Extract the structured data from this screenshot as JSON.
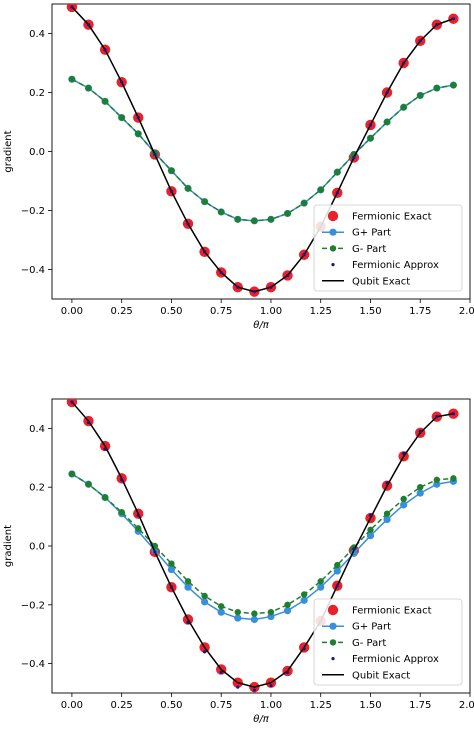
{
  "chart_data": [
    {
      "type": "line",
      "xlabel": "θ/π",
      "ylabel": "gradient",
      "xlim": [
        -0.1,
        2.0
      ],
      "ylim": [
        -0.5,
        0.5
      ],
      "xticks": [
        0.0,
        0.25,
        0.5,
        0.75,
        1.0,
        1.25,
        1.5,
        1.75,
        2.0
      ],
      "xtick_labels": [
        "0.00",
        "0.25",
        "0.50",
        "0.75",
        "1.00",
        "1.25",
        "1.50",
        "1.75",
        "2.00"
      ],
      "yticks": [
        -0.4,
        -0.2,
        0.0,
        0.2,
        0.4
      ],
      "ytick_labels": [
        "−0.4",
        "−0.2",
        "0.0",
        "0.2",
        "0.4"
      ],
      "legend_position": "lower-right",
      "x": [
        0.0,
        0.0833,
        0.1667,
        0.25,
        0.3333,
        0.4167,
        0.5,
        0.5833,
        0.6667,
        0.75,
        0.8333,
        0.9167,
        1.0,
        1.0833,
        1.1667,
        1.25,
        1.3333,
        1.4167,
        1.5,
        1.5833,
        1.6667,
        1.75,
        1.8333,
        1.9167
      ],
      "series": [
        {
          "name": "Fermionic Exact",
          "style": "big-dot",
          "color": "#e8212a",
          "values": [
            0.49,
            0.43,
            0.345,
            0.235,
            0.115,
            -0.01,
            -0.135,
            -0.245,
            -0.34,
            -0.41,
            -0.46,
            -0.475,
            -0.46,
            -0.42,
            -0.35,
            -0.255,
            -0.14,
            -0.02,
            0.09,
            0.2,
            0.3,
            0.375,
            0.43,
            0.45
          ]
        },
        {
          "name": "G+ Part",
          "style": "solid-marker",
          "color": "#3a8fdc",
          "values": [
            0.245,
            0.215,
            0.17,
            0.115,
            0.06,
            -0.005,
            -0.065,
            -0.125,
            -0.17,
            -0.205,
            -0.23,
            -0.235,
            -0.23,
            -0.21,
            -0.175,
            -0.13,
            -0.07,
            -0.01,
            0.045,
            0.1,
            0.15,
            0.19,
            0.215,
            0.225
          ]
        },
        {
          "name": "G- Part",
          "style": "dashed-marker",
          "color": "#1f7f2f",
          "values": [
            0.245,
            0.215,
            0.17,
            0.115,
            0.06,
            -0.005,
            -0.065,
            -0.125,
            -0.17,
            -0.205,
            -0.23,
            -0.235,
            -0.23,
            -0.21,
            -0.175,
            -0.13,
            -0.07,
            -0.01,
            0.045,
            0.1,
            0.15,
            0.19,
            0.215,
            0.225
          ]
        },
        {
          "name": "Fermionic Approx",
          "style": "small-dot",
          "color": "#16168c",
          "values": [
            0.49,
            0.43,
            0.345,
            0.235,
            0.115,
            -0.01,
            -0.135,
            -0.245,
            -0.34,
            -0.41,
            -0.46,
            -0.475,
            -0.46,
            -0.42,
            -0.35,
            -0.255,
            -0.14,
            -0.02,
            0.09,
            0.2,
            0.3,
            0.375,
            0.43,
            0.45
          ]
        },
        {
          "name": "Qubit Exact",
          "style": "line",
          "color": "#000000",
          "values": [
            0.49,
            0.43,
            0.345,
            0.235,
            0.115,
            -0.01,
            -0.135,
            -0.245,
            -0.34,
            -0.41,
            -0.46,
            -0.475,
            -0.46,
            -0.42,
            -0.35,
            -0.255,
            -0.14,
            -0.02,
            0.09,
            0.2,
            0.3,
            0.375,
            0.43,
            0.45
          ]
        }
      ]
    },
    {
      "type": "line",
      "xlabel": "θ/π",
      "ylabel": "gradient",
      "xlim": [
        -0.1,
        2.0
      ],
      "ylim": [
        -0.5,
        0.5
      ],
      "xticks": [
        0.0,
        0.25,
        0.5,
        0.75,
        1.0,
        1.25,
        1.5,
        1.75,
        2.0
      ],
      "xtick_labels": [
        "0.00",
        "0.25",
        "0.50",
        "0.75",
        "1.00",
        "1.25",
        "1.50",
        "1.75",
        "2.00"
      ],
      "yticks": [
        -0.4,
        -0.2,
        0.0,
        0.2,
        0.4
      ],
      "ytick_labels": [
        "−0.4",
        "−0.2",
        "0.0",
        "0.2",
        "0.4"
      ],
      "legend_position": "lower-right",
      "x": [
        0.0,
        0.0833,
        0.1667,
        0.25,
        0.3333,
        0.4167,
        0.5,
        0.5833,
        0.6667,
        0.75,
        0.8333,
        0.9167,
        1.0,
        1.0833,
        1.1667,
        1.25,
        1.3333,
        1.4167,
        1.5,
        1.5833,
        1.6667,
        1.75,
        1.8333,
        1.9167
      ],
      "series": [
        {
          "name": "Fermionic Exact",
          "style": "big-dot",
          "color": "#e8212a",
          "values": [
            0.49,
            0.425,
            0.34,
            0.23,
            0.11,
            -0.02,
            -0.14,
            -0.25,
            -0.345,
            -0.42,
            -0.465,
            -0.48,
            -0.465,
            -0.425,
            -0.345,
            -0.255,
            -0.135,
            -0.015,
            0.095,
            0.205,
            0.305,
            0.385,
            0.44,
            0.45
          ]
        },
        {
          "name": "G+ Part",
          "style": "solid-marker",
          "color": "#3a8fdc",
          "values": [
            0.245,
            0.21,
            0.165,
            0.11,
            0.05,
            -0.015,
            -0.08,
            -0.14,
            -0.19,
            -0.225,
            -0.245,
            -0.25,
            -0.24,
            -0.22,
            -0.185,
            -0.14,
            -0.085,
            -0.025,
            0.035,
            0.09,
            0.14,
            0.18,
            0.21,
            0.22
          ]
        },
        {
          "name": "G- Part",
          "style": "dashed-marker",
          "color": "#1f7f2f",
          "values": [
            0.245,
            0.21,
            0.165,
            0.115,
            0.06,
            0.0,
            -0.06,
            -0.12,
            -0.17,
            -0.205,
            -0.225,
            -0.23,
            -0.225,
            -0.2,
            -0.165,
            -0.12,
            -0.065,
            -0.005,
            0.055,
            0.11,
            0.16,
            0.2,
            0.225,
            0.23
          ]
        },
        {
          "name": "Fermionic Approx",
          "style": "small-dot",
          "color": "#16168c",
          "values": [
            0.49,
            0.42,
            0.33,
            0.225,
            0.105,
            -0.02,
            -0.14,
            -0.26,
            -0.36,
            -0.43,
            -0.48,
            -0.49,
            -0.475,
            -0.43,
            -0.35,
            -0.255,
            -0.135,
            -0.01,
            0.105,
            0.215,
            0.315,
            0.39,
            0.44,
            0.45
          ]
        },
        {
          "name": "Qubit Exact",
          "style": "line",
          "color": "#000000",
          "values": [
            0.49,
            0.425,
            0.34,
            0.23,
            0.11,
            -0.02,
            -0.14,
            -0.25,
            -0.345,
            -0.42,
            -0.465,
            -0.48,
            -0.465,
            -0.425,
            -0.345,
            -0.255,
            -0.135,
            -0.015,
            0.095,
            0.205,
            0.305,
            0.385,
            0.44,
            0.45
          ]
        }
      ]
    }
  ]
}
